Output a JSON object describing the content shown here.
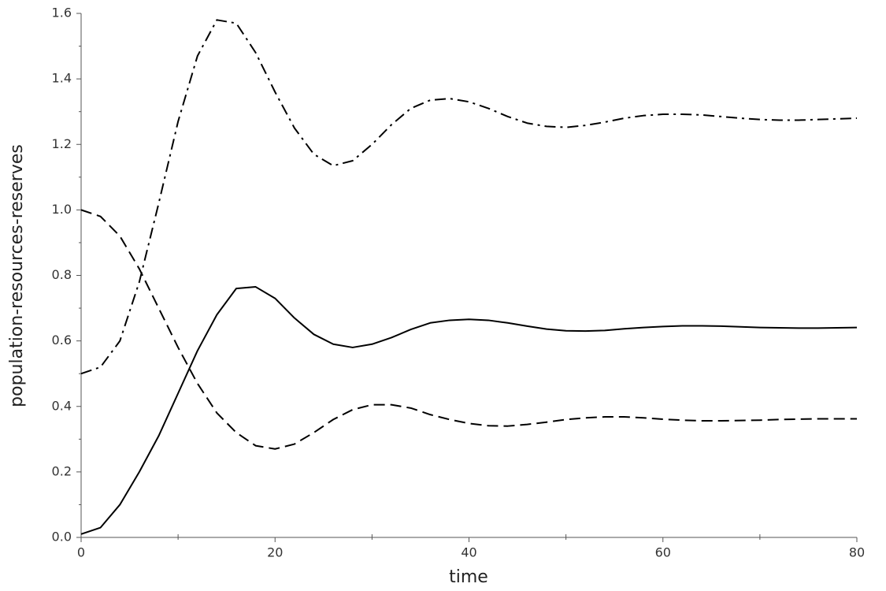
{
  "chart_data": {
    "type": "line",
    "xlabel": "time",
    "ylabel": "population-resources-reserves",
    "x": [
      0,
      2,
      4,
      6,
      8,
      10,
      12,
      14,
      16,
      18,
      20,
      22,
      24,
      26,
      28,
      30,
      32,
      34,
      36,
      38,
      40,
      42,
      44,
      46,
      48,
      50,
      52,
      54,
      56,
      58,
      60,
      62,
      64,
      66,
      68,
      70,
      72,
      74,
      76,
      78,
      80
    ],
    "series": [
      {
        "color": "#000000",
        "style": "solid",
        "values": [
          0.01,
          0.03,
          0.1,
          0.2,
          0.31,
          0.44,
          0.57,
          0.68,
          0.76,
          0.765,
          0.73,
          0.67,
          0.62,
          0.59,
          0.58,
          0.59,
          0.61,
          0.635,
          0.655,
          0.663,
          0.666,
          0.663,
          0.655,
          0.645,
          0.636,
          0.631,
          0.63,
          0.632,
          0.637,
          0.641,
          0.644,
          0.646,
          0.646,
          0.645,
          0.643,
          0.641,
          0.64,
          0.639,
          0.639,
          0.64,
          0.641
        ]
      },
      {
        "color": "#000000",
        "style": "dashed",
        "values": [
          1.0,
          0.98,
          0.92,
          0.82,
          0.7,
          0.58,
          0.47,
          0.38,
          0.32,
          0.28,
          0.27,
          0.285,
          0.32,
          0.36,
          0.39,
          0.405,
          0.405,
          0.395,
          0.375,
          0.36,
          0.348,
          0.341,
          0.34,
          0.345,
          0.352,
          0.36,
          0.365,
          0.368,
          0.368,
          0.365,
          0.361,
          0.358,
          0.356,
          0.356,
          0.357,
          0.358,
          0.36,
          0.361,
          0.362,
          0.362,
          0.362
        ]
      },
      {
        "color": "#000000",
        "style": "dashdot",
        "values": [
          0.5,
          0.52,
          0.6,
          0.78,
          1.02,
          1.27,
          1.47,
          1.58,
          1.57,
          1.48,
          1.36,
          1.25,
          1.17,
          1.135,
          1.15,
          1.2,
          1.26,
          1.31,
          1.335,
          1.34,
          1.33,
          1.31,
          1.285,
          1.265,
          1.255,
          1.252,
          1.258,
          1.268,
          1.28,
          1.288,
          1.292,
          1.292,
          1.29,
          1.285,
          1.28,
          1.276,
          1.274,
          1.274,
          1.276,
          1.278,
          1.28
        ]
      }
    ],
    "xlim": [
      0,
      80
    ],
    "xticks": [
      0,
      20,
      40,
      60,
      80
    ],
    "xminorticks": [
      10,
      30,
      50,
      70
    ],
    "ylim": [
      0,
      1.6
    ],
    "yticks": [
      {
        "value": 0,
        "label": "0.0"
      },
      0.2,
      0.4,
      0.6,
      0.8,
      {
        "value": 1,
        "label": "1.0"
      },
      1.2,
      1.4,
      1.6
    ],
    "yminorticks": [
      0.1,
      0.3,
      0.5,
      0.7,
      0.9,
      1.1,
      1.3,
      1.5
    ],
    "grid": false
  }
}
